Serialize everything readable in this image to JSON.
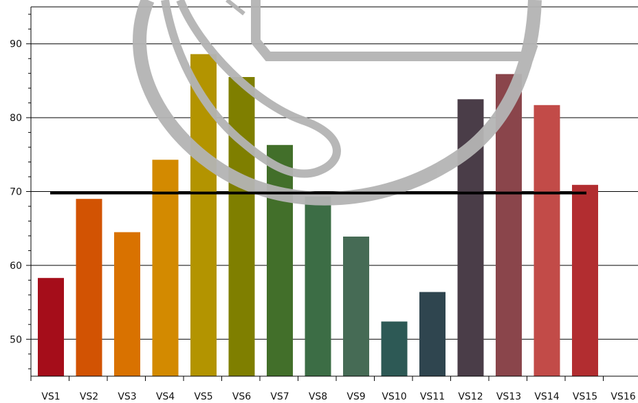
{
  "chart_data": {
    "type": "bar",
    "title": "",
    "xlabel": "",
    "ylabel": "",
    "categories": [
      "VS1",
      "VS2",
      "VS3",
      "VS4",
      "VS5",
      "VS6",
      "VS7",
      "VS8",
      "VS9",
      "VS10",
      "VS11",
      "VS12",
      "VS13",
      "VS14",
      "VS15",
      "VS16"
    ],
    "values": [
      58.3,
      69.0,
      64.5,
      74.3,
      88.6,
      85.5,
      76.3,
      69.3,
      63.9,
      52.4,
      56.4,
      82.5,
      85.9,
      81.7,
      70.9,
      null
    ],
    "bar_colors": [
      "#a50d1a",
      "#d25303",
      "#d97200",
      "#d38a00",
      "#b39400",
      "#7f7f00",
      "#426f2a",
      "#3c6d45",
      "#466b55",
      "#2d5955",
      "#2f454f",
      "#4a3d48",
      "#8a454b",
      "#c24b48",
      "#b22d30",
      null
    ],
    "reference_line": {
      "value": 69.8,
      "color": "#000000"
    },
    "yticks": [
      50,
      60,
      70,
      80,
      90
    ],
    "ylim": [
      45,
      95
    ],
    "grid": {
      "horizontal": true,
      "vertical": false
    },
    "legend": "none"
  },
  "watermark": {
    "icon": "globe-watermark-icon",
    "color": "#b4b4b4"
  }
}
